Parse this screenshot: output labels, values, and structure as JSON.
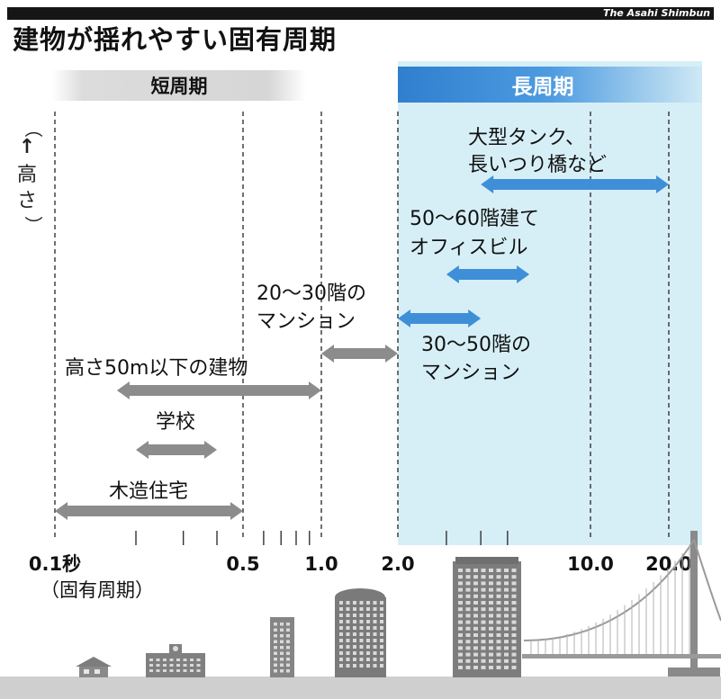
{
  "credit": "The Asahi Shimbun",
  "title": "建物が揺れやすい固有周期",
  "band_short": "短周期",
  "band_long": "長周期",
  "axis_height_label": "（↑高さ）",
  "axis_period_label": "（固有周期）",
  "ticks": [
    {
      "value": 0.1,
      "label": "0.1秒"
    },
    {
      "value": 0.5,
      "label": "0.5"
    },
    {
      "value": 1.0,
      "label": "1.0"
    },
    {
      "value": 2.0,
      "label": "2.0"
    },
    {
      "value": 10.0,
      "label": "10.0"
    },
    {
      "value": 20.0,
      "label": "20.0"
    }
  ],
  "ranges": [
    {
      "lines": [
        "大型タンク、",
        "長いつり橋など"
      ],
      "from": 4.0,
      "to": 20.0,
      "color": "#3f8fd8"
    },
    {
      "lines": [
        "50〜60階建て",
        "オフィスビル"
      ],
      "from": 3.0,
      "to": 6.0,
      "color": "#3f8fd8"
    },
    {
      "lines": [
        "20〜30階の",
        "マンション"
      ],
      "from": 1.0,
      "to": 2.0,
      "color": "#8c8c8c"
    },
    {
      "lines": [
        "30〜50階の",
        "マンション"
      ],
      "from": 2.0,
      "to": 4.0,
      "color": "#3f8fd8"
    },
    {
      "lines": [
        "高さ50m以下の建物"
      ],
      "from": 0.17,
      "to": 1.0,
      "color": "#8c8c8c"
    },
    {
      "lines": [
        "学校"
      ],
      "from": 0.2,
      "to": 0.4,
      "color": "#8c8c8c"
    },
    {
      "lines": [
        "木造住宅"
      ],
      "from": 0.1,
      "to": 0.5,
      "color": "#8c8c8c"
    }
  ]
}
